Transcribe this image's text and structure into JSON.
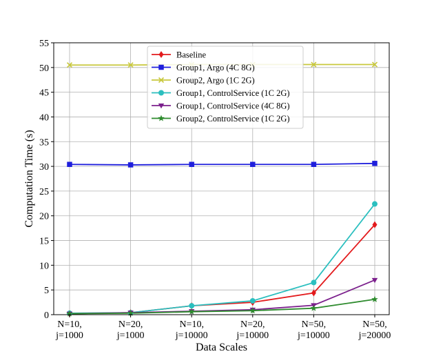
{
  "chart_data": {
    "type": "line",
    "xlabel": "Data Scales",
    "ylabel": "Computation Time (s)",
    "categories": [
      [
        "N=10,",
        "j=1000"
      ],
      [
        "N=20,",
        "j=1000"
      ],
      [
        "N=10,",
        "j=10000"
      ],
      [
        "N=20,",
        "j=10000"
      ],
      [
        "N=50,",
        "j=10000"
      ],
      [
        "N=50,",
        "j=20000"
      ]
    ],
    "ylim": [
      0,
      55
    ],
    "yticks": [
      0,
      5,
      10,
      15,
      20,
      25,
      30,
      35,
      40,
      45,
      50,
      55
    ],
    "grid": true,
    "legend_position": "top-center",
    "series": [
      {
        "name": "Baseline",
        "color": "#e31a1c",
        "marker": "diamond",
        "values": [
          0.2,
          0.4,
          1.8,
          2.5,
          4.4,
          18.2
        ]
      },
      {
        "name": "Group1, Argo (4C 8G)",
        "color": "#1f1fdc",
        "marker": "square",
        "values": [
          30.4,
          30.3,
          30.4,
          30.4,
          30.4,
          30.6
        ]
      },
      {
        "name": "Group2, Argo (1C 2G)",
        "color": "#c8c83c",
        "marker": "x",
        "values": [
          50.5,
          50.5,
          50.6,
          50.6,
          50.6,
          50.6
        ]
      },
      {
        "name": "Group1, ControlService (1C 2G)",
        "color": "#2bbfbf",
        "marker": "circle",
        "values": [
          0.3,
          0.4,
          1.8,
          2.8,
          6.5,
          22.4
        ]
      },
      {
        "name": "Group1, ControlService (4C 8G)",
        "color": "#7b1f8c",
        "marker": "triangle-down",
        "values": [
          0.2,
          0.4,
          0.7,
          1.0,
          1.9,
          7.0
        ]
      },
      {
        "name": "Group2, ControlService (1C 2G)",
        "color": "#2e8b2e",
        "marker": "star",
        "values": [
          0.2,
          0.3,
          0.6,
          0.8,
          1.3,
          3.1
        ]
      }
    ]
  }
}
